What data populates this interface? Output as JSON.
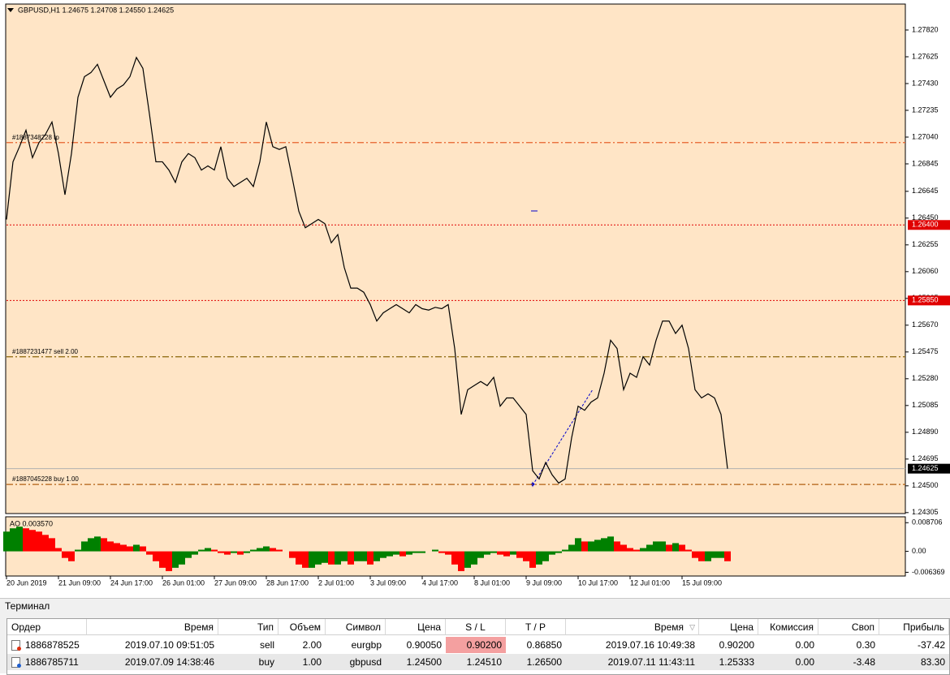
{
  "chart_data": {
    "type": "line",
    "title": "GBPUSD,H1  1.24675 1.24708 1.24550 1.24625",
    "color": "#000000",
    "background": "#ffe5c6",
    "values": [
      1.2644,
      1.2686,
      1.2697,
      1.2709,
      1.2689,
      1.27,
      1.2706,
      1.2715,
      1.2692,
      1.2662,
      1.2692,
      1.2733,
      1.2748,
      1.2751,
      1.2757,
      1.2745,
      1.2733,
      1.2739,
      1.2742,
      1.2748,
      1.2762,
      1.2754,
      1.2721,
      1.2686,
      1.2686,
      1.268,
      1.2671,
      1.2686,
      1.2692,
      1.2689,
      1.268,
      1.2683,
      1.268,
      1.2697,
      1.2674,
      1.2668,
      1.2671,
      1.2674,
      1.2668,
      1.2686,
      1.2715,
      1.2697,
      1.2695,
      1.2697,
      1.2674,
      1.265,
      1.2638,
      1.2641,
      1.2644,
      1.2641,
      1.2627,
      1.2633,
      1.2609,
      1.2594,
      1.2594,
      1.2591,
      1.2582,
      1.257,
      1.2576,
      1.2579,
      1.2582,
      1.2579,
      1.2576,
      1.2582,
      1.2579,
      1.2578,
      1.258,
      1.2579,
      1.2582,
      1.255,
      1.2502,
      1.252,
      1.2523,
      1.2526,
      1.2523,
      1.2529,
      1.2508,
      1.2514,
      1.2514,
      1.2508,
      1.2502,
      1.2461,
      1.2455,
      1.2467,
      1.2458,
      1.2452,
      1.2455,
      1.2485,
      1.2508,
      1.2505,
      1.2511,
      1.2514,
      1.2532,
      1.2556,
      1.255,
      1.252,
      1.2532,
      1.2529,
      1.2544,
      1.2538,
      1.2556,
      1.257,
      1.257,
      1.2561,
      1.2567,
      1.255,
      1.252,
      1.2514,
      1.2517,
      1.2514,
      1.2502,
      1.24625
    ],
    "ylim": [
      1.24298,
      1.28009
    ],
    "yticks": [
      {
        "value": 1.2782,
        "label": "1.27820"
      },
      {
        "value": 1.27625,
        "label": "1.27625"
      },
      {
        "value": 1.2743,
        "label": "1.27430"
      },
      {
        "value": 1.27235,
        "label": "1.27235"
      },
      {
        "value": 1.2704,
        "label": "1.27040"
      },
      {
        "value": 1.26845,
        "label": "1.26845"
      },
      {
        "value": 1.26645,
        "label": "1.26645"
      },
      {
        "value": 1.2645,
        "label": "1.26450"
      },
      {
        "value": 1.26255,
        "label": "1.26255"
      },
      {
        "value": 1.2606,
        "label": "1.26060"
      },
      {
        "value": 1.25865,
        "label": "1.25865"
      },
      {
        "value": 1.2567,
        "label": "1.25670"
      },
      {
        "value": 1.25475,
        "label": "1.25475"
      },
      {
        "value": 1.2528,
        "label": "1.25280"
      },
      {
        "value": 1.25085,
        "label": "1.25085"
      },
      {
        "value": 1.2489,
        "label": "1.24890"
      },
      {
        "value": 1.24695,
        "label": "1.24695"
      },
      {
        "value": 1.245,
        "label": "1.24500"
      },
      {
        "value": 1.24305,
        "label": "1.24305"
      }
    ],
    "xticks": [
      {
        "value": 0,
        "label": "20 Jun 2019"
      },
      {
        "value": 8,
        "label": "21 Jun 09:00"
      },
      {
        "value": 16,
        "label": "24 Jun 17:00"
      },
      {
        "value": 24,
        "label": "26 Jun 01:00"
      },
      {
        "value": 32,
        "label": "27 Jun 09:00"
      },
      {
        "value": 40,
        "label": "28 Jun 17:00"
      },
      {
        "value": 48,
        "label": "2 Jul 01:00"
      },
      {
        "value": 56,
        "label": "3 Jul 09:00"
      },
      {
        "value": 64,
        "label": "4 Jul 17:00"
      },
      {
        "value": 72,
        "label": "8 Jul 01:00"
      },
      {
        "value": 80,
        "label": "9 Jul 09:00"
      },
      {
        "value": 88,
        "label": "10 Jul 17:00"
      },
      {
        "value": 96,
        "label": "12 Jul 01:00"
      },
      {
        "value": 104,
        "label": "15 Jul 09:00"
      }
    ],
    "levels": [
      {
        "value": 1.27,
        "color": "#e8612c",
        "dash": "dashdot",
        "text": "#1887348228 tp"
      },
      {
        "value": 1.264,
        "color": "#e00000",
        "dash": "dot",
        "tag": "1.26400"
      },
      {
        "value": 1.2585,
        "color": "#e00000",
        "dash": "dot",
        "tag": "1.25850"
      },
      {
        "value": 1.2544,
        "color": "#8b6508",
        "dash": "dashdot",
        "text": "#1887231477 sell 2.00"
      },
      {
        "value": 1.2451,
        "color": "#b06010",
        "dash": "dashdot",
        "text": "#1887045228 buy 1.00"
      },
      {
        "value": 1.24625,
        "color": "#b0b0b0",
        "dash": "solid",
        "tag": "1.24625"
      }
    ],
    "indicator": {
      "label": "AO 0.003570",
      "up_color": "#008000",
      "down_color": "#ff0000",
      "values": [
        0.006,
        0.007,
        0.0075,
        0.007,
        0.0065,
        0.006,
        0.005,
        0.004,
        0.001,
        -0.002,
        -0.003,
        0.0005,
        0.003,
        0.004,
        0.0045,
        0.004,
        0.003,
        0.0025,
        0.002,
        0.0015,
        0.002,
        0.0015,
        -0.001,
        -0.003,
        -0.005,
        -0.006,
        -0.005,
        -0.004,
        -0.002,
        -0.001,
        0.0005,
        0.001,
        0.0005,
        -0.0005,
        -0.001,
        -0.0005,
        -0.001,
        -0.0005,
        0.0005,
        0.001,
        0.0015,
        0.001,
        0.0005,
        0,
        -0.002,
        -0.004,
        -0.005,
        -0.005,
        -0.004,
        -0.0035,
        -0.004,
        -0.004,
        -0.003,
        -0.004,
        -0.003,
        -0.003,
        -0.004,
        -0.003,
        -0.002,
        -0.0015,
        -0.001,
        -0.0015,
        -0.001,
        -0.0005,
        -0.0005,
        0,
        0.0005,
        -0.0005,
        -0.001,
        -0.004,
        -0.006,
        -0.005,
        -0.004,
        -0.002,
        -0.001,
        -0.0005,
        -0.001,
        -0.0015,
        -0.001,
        -0.002,
        -0.003,
        -0.005,
        -0.004,
        -0.003,
        -0.001,
        -0.0005,
        0.0005,
        0.002,
        0.004,
        0.003,
        0.003,
        0.0035,
        0.004,
        0.0045,
        0.003,
        0.002,
        0.001,
        0.0005,
        0.001,
        0.002,
        0.003,
        0.003,
        0.002,
        0.0025,
        0.002,
        0.0005,
        -0.002,
        -0.003,
        -0.003,
        -0.002,
        -0.002,
        -0.003
      ],
      "ylim": [
        -0.0075,
        0.0105
      ],
      "yticks": [
        0.008706,
        {
          "value": 0,
          "label": "0.00"
        },
        -0.006369
      ]
    }
  },
  "terminal": {
    "title": "Терминал",
    "columns": [
      "Ордер",
      "Время",
      "Тип",
      "Объем",
      "Символ",
      "Цена",
      "S / L",
      "T / P",
      "Время",
      "Цена",
      "Комиссия",
      "Своп",
      "Прибыль"
    ],
    "rows": [
      [
        "1886878525",
        "2019.07.10 09:51:05",
        "sell",
        "2.00",
        "eurgbp",
        "0.90050",
        "0.90200",
        "0.86850",
        "2019.07.16 10:49:38",
        "0.90200",
        "0.00",
        "0.30",
        "-37.42"
      ],
      [
        "1886785711",
        "2019.07.09 14:38:46",
        "buy",
        "1.00",
        "gbpusd",
        "1.24500",
        "1.24510",
        "1.26500",
        "2019.07.11 11:43:11",
        "1.25333",
        "0.00",
        "-3.48",
        "83.30"
      ]
    ]
  }
}
